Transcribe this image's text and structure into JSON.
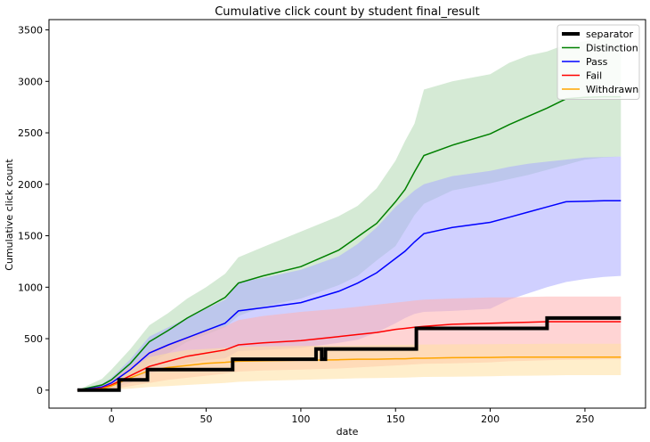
{
  "chart_data": {
    "type": "line",
    "title": "Cumulative click count by student final_result",
    "xlabel": "date",
    "ylabel": "Cumulative click count",
    "xlim": [
      -33,
      282
    ],
    "ylim": [
      -175,
      3600
    ],
    "xticks": [
      0,
      50,
      100,
      150,
      200,
      250
    ],
    "yticks": [
      0,
      500,
      1000,
      1500,
      2000,
      2500,
      3000,
      3500
    ],
    "grid": false,
    "legend_position": "top-right",
    "series": [
      {
        "name": "separator",
        "color": "#000000",
        "step": true,
        "points": [
          [
            -18,
            0
          ],
          [
            4,
            0
          ],
          [
            4,
            100
          ],
          [
            19,
            100
          ],
          [
            19,
            200
          ],
          [
            64,
            200
          ],
          [
            64,
            300
          ],
          [
            108,
            300
          ],
          [
            108,
            400
          ],
          [
            111,
            400
          ],
          [
            111,
            300
          ],
          [
            113,
            300
          ],
          [
            113,
            400
          ],
          [
            161,
            400
          ],
          [
            161,
            600
          ],
          [
            230,
            600
          ],
          [
            230,
            700
          ],
          [
            269,
            700
          ]
        ]
      },
      {
        "name": "Distinction",
        "color": "#008000",
        "band_color": "#b2d8b2",
        "x": [
          -18,
          -5,
          0,
          10,
          20,
          30,
          40,
          50,
          60,
          67,
          80,
          100,
          120,
          130,
          140,
          150,
          155,
          160,
          165,
          180,
          200,
          210,
          220,
          230,
          240,
          250,
          260,
          269
        ],
        "y": [
          0,
          50,
          100,
          260,
          470,
          580,
          700,
          800,
          900,
          1040,
          1110,
          1200,
          1360,
          1490,
          1620,
          1830,
          1950,
          2120,
          2280,
          2380,
          2490,
          2580,
          2660,
          2740,
          2830,
          2845,
          2850,
          2850
        ],
        "lower": [
          0,
          10,
          30,
          120,
          260,
          360,
          470,
          540,
          610,
          720,
          810,
          890,
          1020,
          1110,
          1260,
          1400,
          1550,
          1700,
          1810,
          1940,
          2010,
          2050,
          2090,
          2140,
          2190,
          2240,
          2260,
          2270
        ],
        "upper": [
          0,
          110,
          200,
          400,
          630,
          750,
          890,
          1000,
          1130,
          1290,
          1390,
          1540,
          1690,
          1790,
          1960,
          2230,
          2420,
          2590,
          2920,
          3000,
          3070,
          3180,
          3250,
          3290,
          3360,
          3390,
          3420,
          3420
        ]
      },
      {
        "name": "Pass",
        "color": "#0000ff",
        "band_color": "#aaaaff",
        "x": [
          -18,
          -5,
          0,
          10,
          20,
          30,
          40,
          50,
          60,
          67,
          80,
          100,
          120,
          130,
          140,
          150,
          155,
          160,
          165,
          180,
          200,
          210,
          220,
          230,
          240,
          250,
          260,
          269
        ],
        "y": [
          0,
          30,
          70,
          200,
          360,
          440,
          510,
          580,
          650,
          770,
          800,
          850,
          960,
          1040,
          1140,
          1280,
          1350,
          1440,
          1520,
          1580,
          1630,
          1680,
          1730,
          1780,
          1830,
          1835,
          1840,
          1840
        ],
        "lower": [
          0,
          5,
          20,
          70,
          160,
          210,
          260,
          290,
          310,
          380,
          390,
          410,
          460,
          490,
          560,
          650,
          700,
          740,
          760,
          770,
          790,
          880,
          940,
          1000,
          1050,
          1080,
          1100,
          1110
        ],
        "upper": [
          0,
          60,
          120,
          300,
          520,
          610,
          700,
          790,
          880,
          1050,
          1090,
          1170,
          1300,
          1420,
          1580,
          1780,
          1860,
          1940,
          2000,
          2080,
          2130,
          2170,
          2200,
          2220,
          2240,
          2260,
          2265,
          2270
        ]
      },
      {
        "name": "Fail",
        "color": "#ff0000",
        "band_color": "#ffb0b0",
        "x": [
          -18,
          -5,
          0,
          10,
          20,
          30,
          40,
          50,
          60,
          67,
          80,
          100,
          120,
          130,
          140,
          150,
          155,
          160,
          165,
          180,
          200,
          210,
          220,
          230,
          240,
          250,
          260,
          269
        ],
        "y": [
          0,
          20,
          50,
          140,
          230,
          280,
          330,
          360,
          390,
          440,
          460,
          480,
          520,
          540,
          560,
          590,
          600,
          610,
          620,
          640,
          650,
          655,
          660,
          665,
          665,
          665,
          665,
          665
        ],
        "lower": [
          0,
          3,
          10,
          40,
          70,
          100,
          120,
          140,
          160,
          180,
          190,
          200,
          210,
          220,
          230,
          240,
          245,
          250,
          255,
          260,
          270,
          280,
          285,
          290,
          295,
          297,
          300,
          300
        ],
        "upper": [
          0,
          40,
          90,
          230,
          380,
          450,
          520,
          580,
          620,
          680,
          720,
          760,
          790,
          810,
          830,
          850,
          860,
          870,
          880,
          890,
          900,
          900,
          905,
          910,
          910,
          910,
          910,
          910
        ]
      },
      {
        "name": "Withdrawn",
        "color": "#ffa500",
        "band_color": "#ffe0a0",
        "x": [
          -18,
          -5,
          0,
          10,
          20,
          30,
          40,
          50,
          60,
          67,
          80,
          100,
          120,
          130,
          140,
          150,
          155,
          160,
          165,
          180,
          200,
          210,
          220,
          230,
          240,
          250,
          260,
          269
        ],
        "y": [
          0,
          15,
          40,
          120,
          190,
          220,
          240,
          260,
          270,
          280,
          285,
          290,
          295,
          300,
          300,
          305,
          305,
          310,
          310,
          315,
          318,
          320,
          320,
          320,
          320,
          320,
          320,
          320
        ],
        "lower": [
          0,
          0,
          5,
          15,
          30,
          40,
          50,
          60,
          70,
          80,
          90,
          100,
          110,
          115,
          118,
          120,
          122,
          125,
          128,
          130,
          135,
          138,
          140,
          142,
          145,
          145,
          145,
          145
        ],
        "upper": [
          0,
          30,
          70,
          200,
          320,
          360,
          390,
          400,
          410,
          420,
          425,
          430,
          432,
          435,
          437,
          440,
          440,
          442,
          443,
          445,
          447,
          448,
          448,
          450,
          450,
          450,
          450,
          450
        ]
      }
    ]
  }
}
